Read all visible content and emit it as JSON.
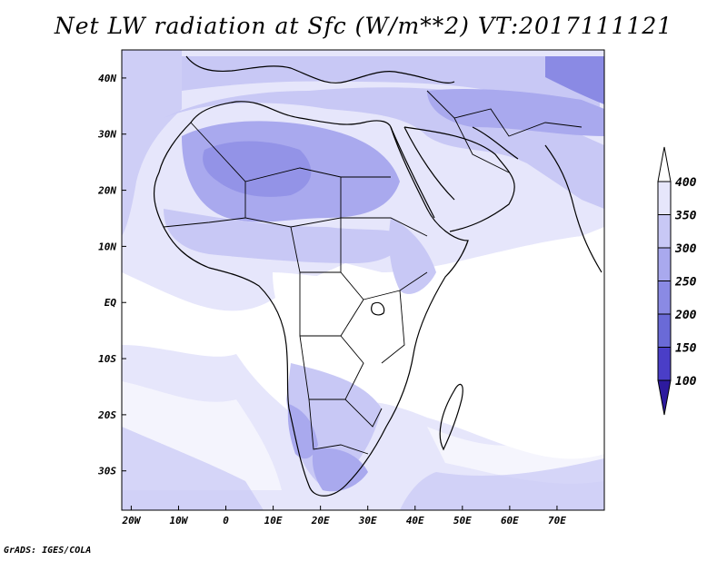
{
  "title": "Net LW radiation at Sfc (W/m**2) VT:2017111121",
  "credit": "GrADS: IGES/COLA",
  "map": {
    "lon_range": [
      -22,
      80
    ],
    "lat_range": [
      -37,
      45
    ],
    "x_ticks": [
      {
        "value": -20,
        "label": "20W"
      },
      {
        "value": -10,
        "label": "10W"
      },
      {
        "value": 0,
        "label": "0"
      },
      {
        "value": 10,
        "label": "10E"
      },
      {
        "value": 20,
        "label": "20E"
      },
      {
        "value": 30,
        "label": "30E"
      },
      {
        "value": 40,
        "label": "40E"
      },
      {
        "value": 50,
        "label": "50E"
      },
      {
        "value": 60,
        "label": "60E"
      },
      {
        "value": 70,
        "label": "70E"
      }
    ],
    "y_ticks": [
      {
        "value": 40,
        "label": "40N"
      },
      {
        "value": 30,
        "label": "30N"
      },
      {
        "value": 20,
        "label": "20N"
      },
      {
        "value": 10,
        "label": "10N"
      },
      {
        "value": 0,
        "label": "EQ"
      },
      {
        "value": -10,
        "label": "10S"
      },
      {
        "value": -20,
        "label": "20S"
      },
      {
        "value": -30,
        "label": "30S"
      }
    ]
  },
  "colorbar": {
    "levels": [
      "400",
      "350",
      "300",
      "250",
      "200",
      "150",
      "100"
    ],
    "colors": [
      "#e6e6fb",
      "#c8c8f5",
      "#a9a9ee",
      "#8a8ae4",
      "#6a6ad7",
      "#4a3ec7",
      "#2d1a9e"
    ]
  },
  "shading": {
    "ocean": "#ffffff",
    "light": "#e6e6fb",
    "medium": "#c8c8f5",
    "strong": "#a9a9ee",
    "deep": "#8a8ae4"
  }
}
